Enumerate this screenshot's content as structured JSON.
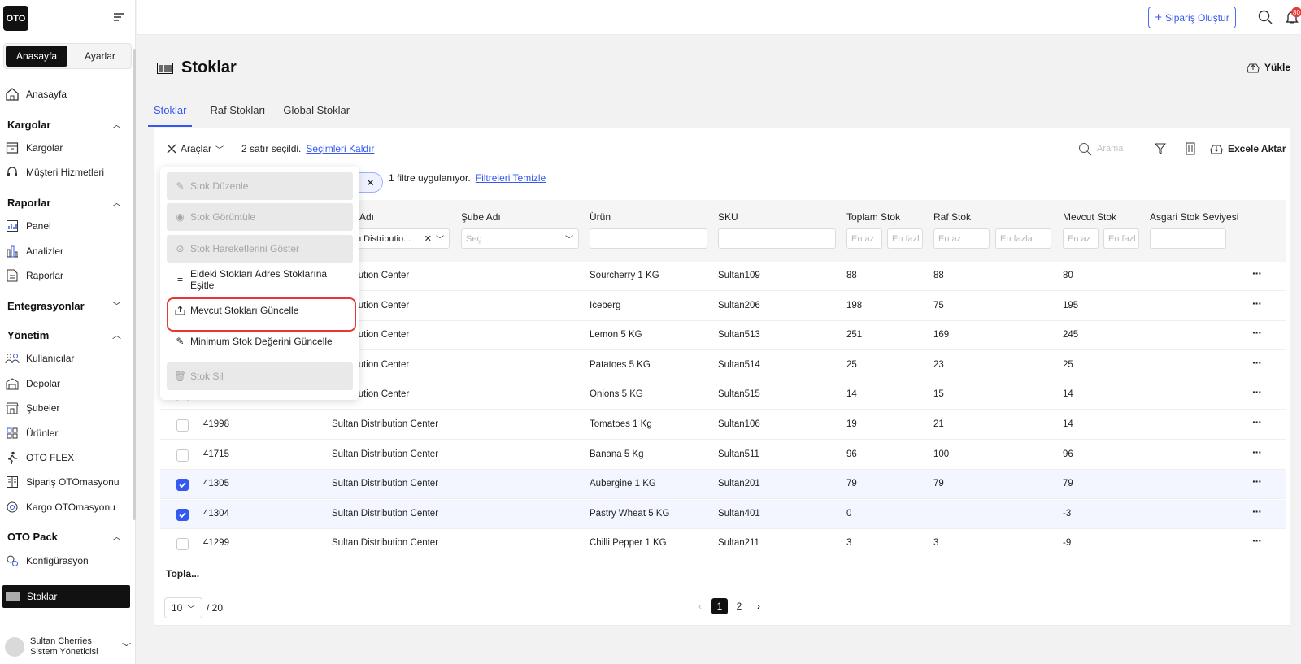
{
  "brand": {
    "logo": "OTO"
  },
  "sidebar": {
    "segments": [
      "Anasayfa",
      "Ayarlar"
    ],
    "home": "Anasayfa",
    "groups": {
      "kargolar": {
        "title": "Kargolar",
        "items": [
          "Kargolar",
          "Müşteri Hizmetleri"
        ]
      },
      "raporlar": {
        "title": "Raporlar",
        "items": [
          "Panel",
          "Analizler",
          "Raporlar"
        ]
      },
      "entegrasyonlar": {
        "title": "Entegrasyonlar"
      },
      "yonetim": {
        "title": "Yönetim",
        "items": [
          "Kullanıcılar",
          "Depolar",
          "Şubeler",
          "Ürünler",
          "OTO FLEX",
          "Sipariş OTOmasyonu",
          "Kargo OTOmasyonu"
        ]
      },
      "otopack": {
        "title": "OTO Pack",
        "items": [
          "Konfigürasyon",
          "Stoklar"
        ]
      }
    },
    "user": {
      "name": "Sultan Cherries",
      "role": "Sistem Yöneticisi"
    }
  },
  "topbar": {
    "order_button": "Sipariş Oluştur",
    "notification_count": "80"
  },
  "page": {
    "title": "Stoklar",
    "upload": "Yükle"
  },
  "tabs": [
    "Stoklar",
    "Raf Stokları",
    "Global Stoklar"
  ],
  "toolbar": {
    "tools": "Araçlar",
    "selected_text": "2 satır seçildi.",
    "clear_selection": "Seçimleri Kaldır",
    "search_placeholder": "Arama",
    "export": "Excele Aktar",
    "filter_text": "1 filtre uygulanıyor.",
    "clear_filters": "Filtreleri Temizle"
  },
  "dropdown": {
    "items": [
      {
        "label": "Stok Düzenle",
        "disabled": true
      },
      {
        "label": "Stok Görüntüle",
        "disabled": true
      },
      {
        "label": "Stok Hareketlerini Göster",
        "disabled": true
      },
      {
        "label": "Eldeki Stokları Adres Stoklarına Eşitle",
        "disabled": false
      },
      {
        "label": "Mevcut Stokları Güncelle",
        "disabled": false
      },
      {
        "label": "Minimum Stok Değerini Güncelle",
        "disabled": false
      },
      {
        "label": "Stok Sil",
        "disabled": true
      }
    ]
  },
  "table": {
    "headers": {
      "warehouse": "Adı",
      "branch": "Şube Adı",
      "product": "Ürün",
      "sku": "SKU",
      "total": "Toplam Stok",
      "shelf": "Raf Stok",
      "current": "Mevcut Stok",
      "min": "Asgari Stok Seviyesi"
    },
    "filters": {
      "warehouse_value": "n Distributio...",
      "branch_placeholder": "Seç",
      "min_placeholder": "En az",
      "max_placeholder": "En fazl",
      "max_placeholder_wide": "En fazla"
    },
    "rows": [
      {
        "id": "",
        "warehouse": "Distribution Center",
        "product": "Sourcherry 1 KG",
        "sku": "Sultan109",
        "total": "88",
        "shelf": "88",
        "current": "80",
        "checked": false
      },
      {
        "id": "",
        "warehouse": "Distribution Center",
        "product": "Iceberg",
        "sku": "Sultan206",
        "total": "198",
        "shelf": "75",
        "current": "195",
        "checked": false
      },
      {
        "id": "",
        "warehouse": "Distribution Center",
        "product": "Lemon 5 KG",
        "sku": "Sultan513",
        "total": "251",
        "shelf": "169",
        "current": "245",
        "checked": false
      },
      {
        "id": "",
        "warehouse": "Distribution Center",
        "product": "Patatoes 5 KG",
        "sku": "Sultan514",
        "total": "25",
        "shelf": "23",
        "current": "25",
        "checked": false
      },
      {
        "id": "",
        "warehouse": "Distribution Center",
        "product": "Onions 5 KG",
        "sku": "Sultan515",
        "total": "14",
        "shelf": "15",
        "current": "14",
        "checked": false
      },
      {
        "id": "41998",
        "warehouse": "Sultan Distribution Center",
        "product": "Tomatoes 1 Kg",
        "sku": "Sultan106",
        "total": "19",
        "shelf": "21",
        "current": "14",
        "checked": false
      },
      {
        "id": "41715",
        "warehouse": "Sultan Distribution Center",
        "product": "Banana 5 Kg",
        "sku": "Sultan511",
        "total": "96",
        "shelf": "100",
        "current": "96",
        "checked": false
      },
      {
        "id": "41305",
        "warehouse": "Sultan Distribution Center",
        "product": "Aubergine 1 KG",
        "sku": "Sultan201",
        "total": "79",
        "shelf": "79",
        "current": "79",
        "checked": true
      },
      {
        "id": "41304",
        "warehouse": "Sultan Distribution Center",
        "product": "Pastry Wheat 5 KG",
        "sku": "Sultan401",
        "total": "0",
        "shelf": "",
        "current": "-3",
        "checked": true
      },
      {
        "id": "41299",
        "warehouse": "Sultan Distribution Center",
        "product": "Chilli Pepper 1 KG",
        "sku": "Sultan211",
        "total": "3",
        "shelf": "3",
        "current": "-9",
        "checked": false
      }
    ]
  },
  "footer": {
    "totals": "Topla...",
    "page_size": "10",
    "page_total": "/ 20",
    "pages": [
      "1",
      "2"
    ]
  }
}
